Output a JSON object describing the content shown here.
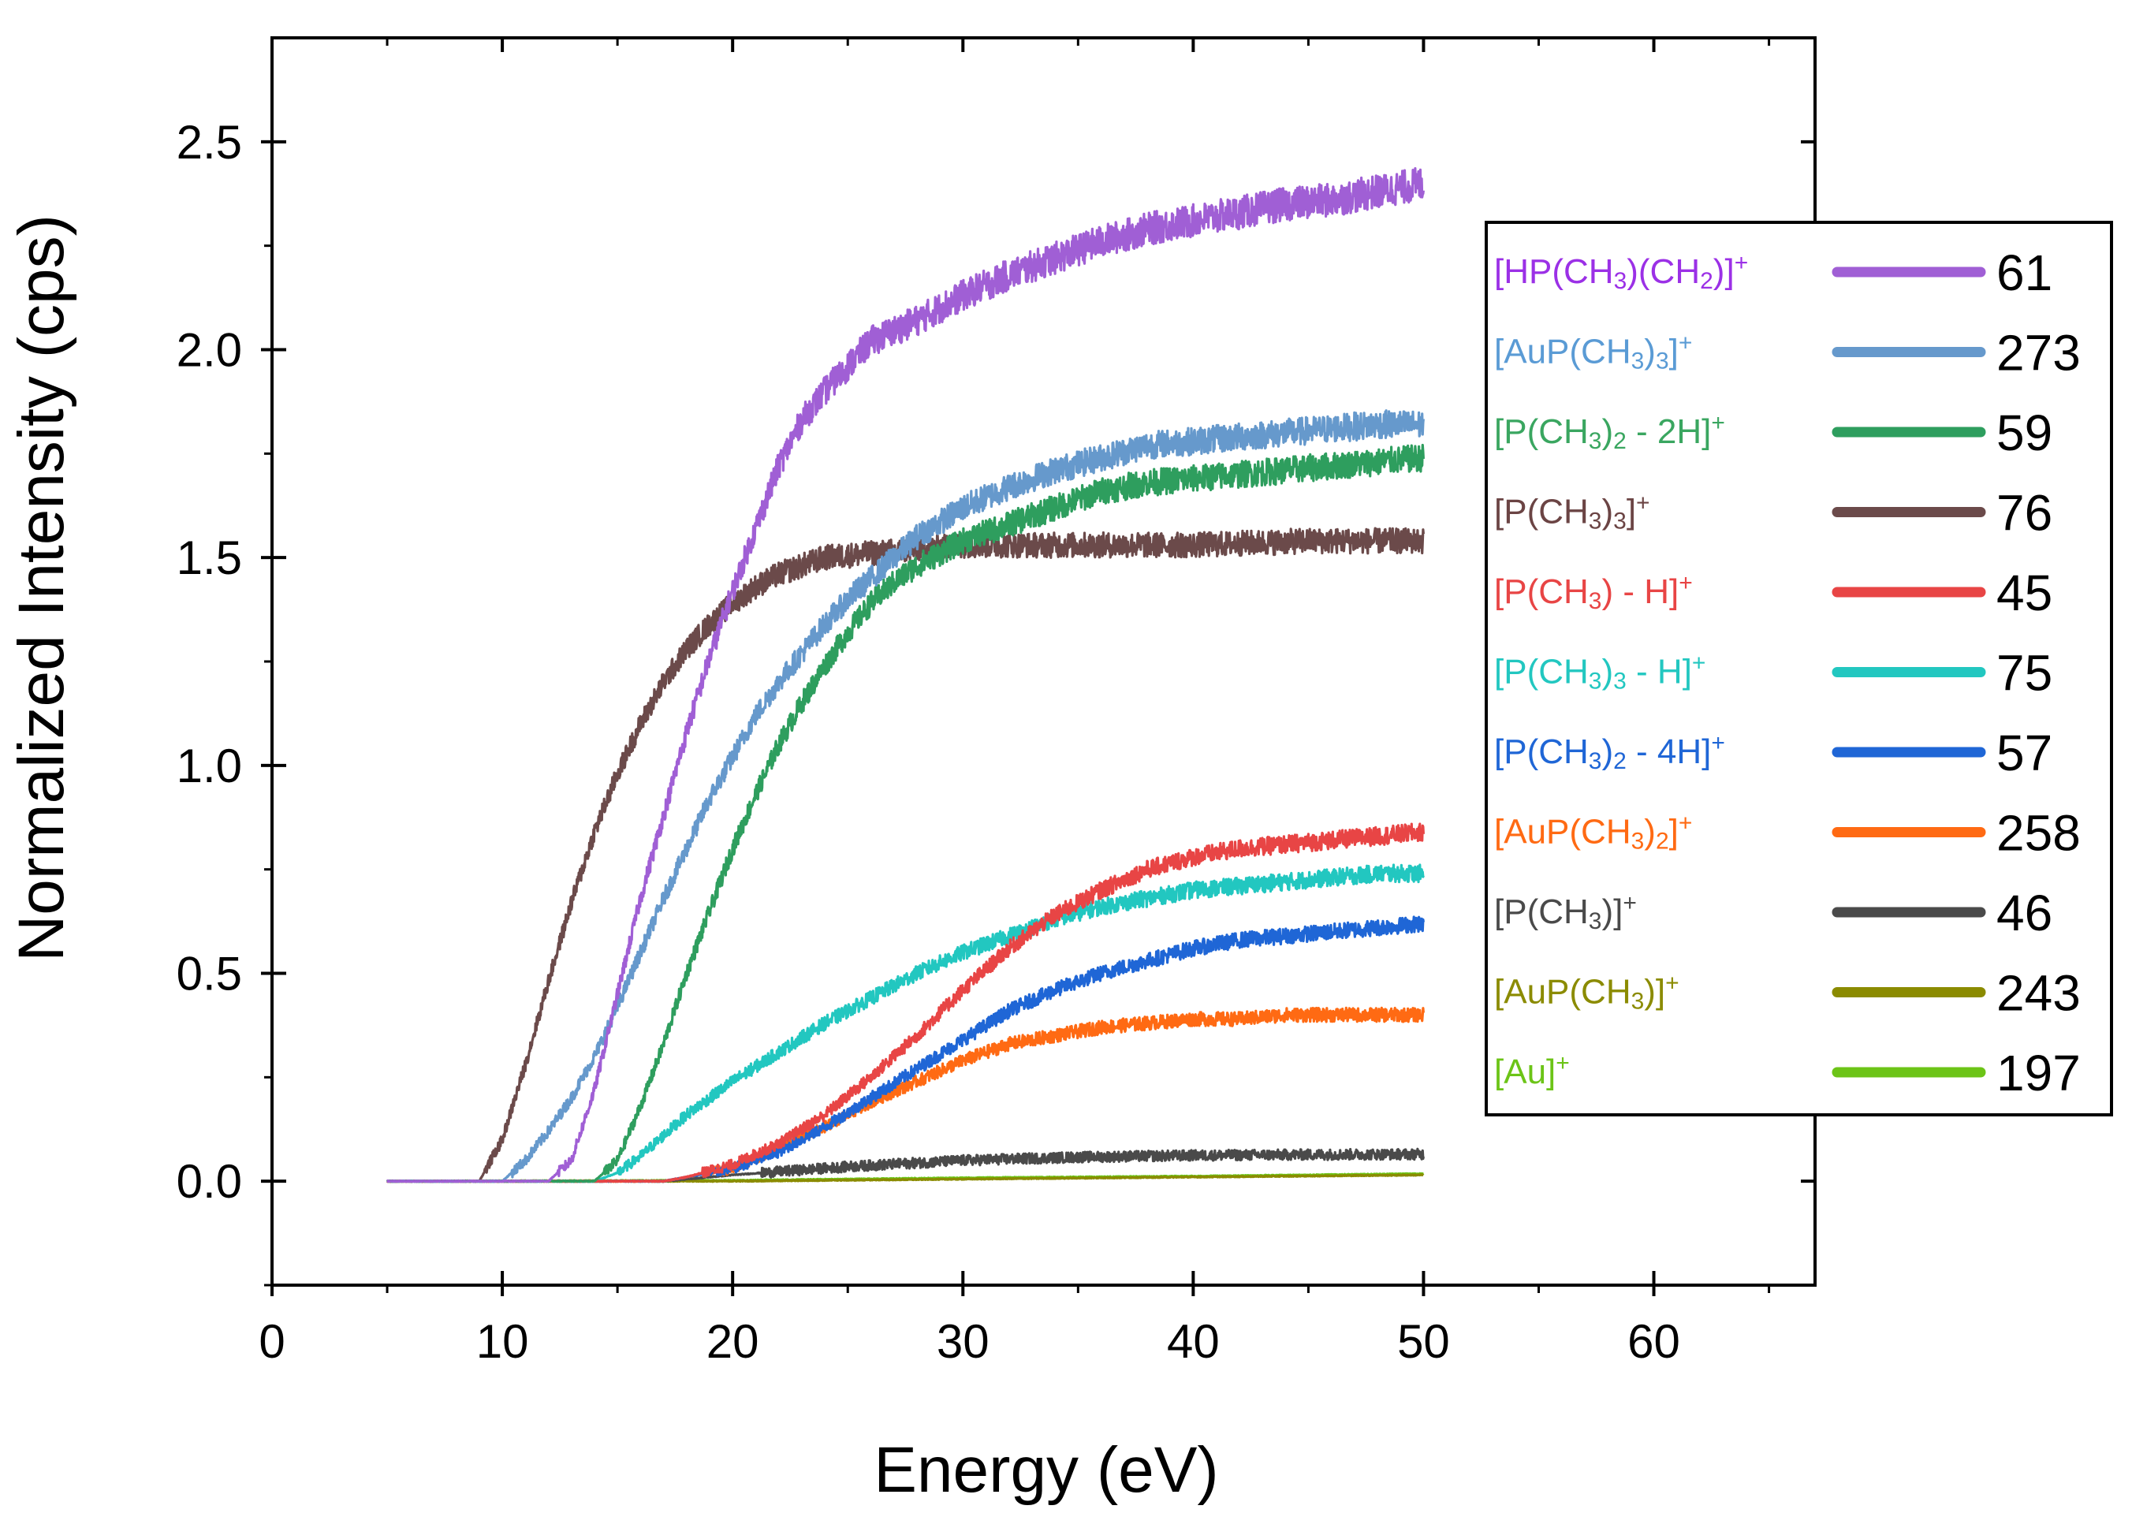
{
  "chart_data": {
    "type": "line",
    "title": "",
    "xlabel": "Energy (eV)",
    "ylabel": "Normalized Intensity (cps)",
    "xlim": [
      0,
      67
    ],
    "ylim": [
      -0.25,
      2.75
    ],
    "xticks": [
      "0",
      "10",
      "20",
      "30",
      "40",
      "50",
      "60"
    ],
    "xtick_values": [
      0,
      10,
      20,
      30,
      40,
      50,
      60
    ],
    "yticks": [
      "0.0",
      "0.5",
      "1.0",
      "1.5",
      "2.0",
      "2.5"
    ],
    "ytick_values": [
      0,
      0.5,
      1.0,
      1.5,
      2.0,
      2.5
    ],
    "legend_position": "right",
    "series": [
      {
        "name": "[HP(CH3)(CH2)]+",
        "label_parts": [
          [
            "[HP(CH",
            "n"
          ],
          [
            "3",
            "sub"
          ],
          [
            ")(CH",
            "n"
          ],
          [
            "2",
            "sub"
          ],
          [
            ")]",
            "n"
          ],
          [
            "+",
            "sup"
          ]
        ],
        "mass": "61",
        "color": "#a05fd5",
        "label_color": "#9b30e6",
        "points": [
          [
            5,
            0
          ],
          [
            12,
            0
          ],
          [
            13,
            0.05
          ],
          [
            14,
            0.22
          ],
          [
            15,
            0.45
          ],
          [
            16,
            0.68
          ],
          [
            17,
            0.88
          ],
          [
            18,
            1.08
          ],
          [
            19,
            1.26
          ],
          [
            20,
            1.42
          ],
          [
            21,
            1.57
          ],
          [
            22,
            1.72
          ],
          [
            23,
            1.83
          ],
          [
            24,
            1.9
          ],
          [
            25,
            1.96
          ],
          [
            26,
            2.02
          ],
          [
            28,
            2.07
          ],
          [
            30,
            2.13
          ],
          [
            32,
            2.18
          ],
          [
            34,
            2.22
          ],
          [
            36,
            2.26
          ],
          [
            38,
            2.29
          ],
          [
            40,
            2.31
          ],
          [
            42,
            2.33
          ],
          [
            44,
            2.35
          ],
          [
            46,
            2.36
          ],
          [
            48,
            2.38
          ],
          [
            50,
            2.4
          ]
        ]
      },
      {
        "name": "[AuP(CH3)3]+",
        "label_parts": [
          [
            "[AuP(CH",
            "n"
          ],
          [
            "3",
            "sub"
          ],
          [
            ")",
            "n"
          ],
          [
            "3",
            "sub"
          ],
          [
            "]",
            "n"
          ],
          [
            "+",
            "sup"
          ]
        ],
        "mass": "273",
        "color": "#6699cc",
        "label_color": "#5a9bd5",
        "points": [
          [
            5,
            0
          ],
          [
            10,
            0
          ],
          [
            11,
            0.05
          ],
          [
            12,
            0.12
          ],
          [
            13,
            0.2
          ],
          [
            14,
            0.3
          ],
          [
            15,
            0.42
          ],
          [
            16,
            0.55
          ],
          [
            17,
            0.68
          ],
          [
            18,
            0.8
          ],
          [
            19,
            0.92
          ],
          [
            20,
            1.02
          ],
          [
            21,
            1.12
          ],
          [
            22,
            1.2
          ],
          [
            23,
            1.27
          ],
          [
            24,
            1.34
          ],
          [
            25,
            1.4
          ],
          [
            26,
            1.45
          ],
          [
            27,
            1.5
          ],
          [
            28,
            1.55
          ],
          [
            30,
            1.62
          ],
          [
            32,
            1.67
          ],
          [
            34,
            1.71
          ],
          [
            36,
            1.74
          ],
          [
            38,
            1.77
          ],
          [
            40,
            1.78
          ],
          [
            42,
            1.79
          ],
          [
            44,
            1.8
          ],
          [
            46,
            1.81
          ],
          [
            48,
            1.82
          ],
          [
            50,
            1.82
          ]
        ]
      },
      {
        "name": "[P(CH3)2 - 2H]+",
        "label_parts": [
          [
            "[P(CH",
            "n"
          ],
          [
            "3",
            "sub"
          ],
          [
            ")",
            "n"
          ],
          [
            "2",
            "sub"
          ],
          [
            " - 2H]",
            "n"
          ],
          [
            "+",
            "sup"
          ]
        ],
        "mass": "59",
        "color": "#2e9e5e",
        "label_color": "#3aa660",
        "points": [
          [
            5,
            0
          ],
          [
            14,
            0
          ],
          [
            15,
            0.05
          ],
          [
            16,
            0.18
          ],
          [
            17,
            0.33
          ],
          [
            18,
            0.5
          ],
          [
            19,
            0.65
          ],
          [
            20,
            0.8
          ],
          [
            21,
            0.93
          ],
          [
            22,
            1.05
          ],
          [
            23,
            1.15
          ],
          [
            24,
            1.24
          ],
          [
            25,
            1.32
          ],
          [
            26,
            1.39
          ],
          [
            27,
            1.44
          ],
          [
            28,
            1.48
          ],
          [
            30,
            1.54
          ],
          [
            32,
            1.58
          ],
          [
            34,
            1.62
          ],
          [
            36,
            1.66
          ],
          [
            38,
            1.68
          ],
          [
            40,
            1.69
          ],
          [
            42,
            1.7
          ],
          [
            44,
            1.71
          ],
          [
            46,
            1.72
          ],
          [
            48,
            1.73
          ],
          [
            50,
            1.74
          ]
        ]
      },
      {
        "name": "[P(CH3)3]+",
        "label_parts": [
          [
            "[P(CH",
            "n"
          ],
          [
            "3",
            "sub"
          ],
          [
            ")",
            "n"
          ],
          [
            "3",
            "sub"
          ],
          [
            "]",
            "n"
          ],
          [
            "+",
            "sup"
          ]
        ],
        "mass": "76",
        "color": "#6b4a4a",
        "label_color": "#6b4444",
        "points": [
          [
            5,
            0
          ],
          [
            9,
            0
          ],
          [
            10,
            0.1
          ],
          [
            11,
            0.28
          ],
          [
            12,
            0.48
          ],
          [
            13,
            0.67
          ],
          [
            14,
            0.84
          ],
          [
            15,
            0.98
          ],
          [
            16,
            1.1
          ],
          [
            17,
            1.2
          ],
          [
            18,
            1.28
          ],
          [
            19,
            1.34
          ],
          [
            20,
            1.39
          ],
          [
            21,
            1.43
          ],
          [
            22,
            1.46
          ],
          [
            23,
            1.48
          ],
          [
            24,
            1.5
          ],
          [
            26,
            1.51
          ],
          [
            28,
            1.52
          ],
          [
            30,
            1.53
          ],
          [
            35,
            1.53
          ],
          [
            40,
            1.53
          ],
          [
            45,
            1.54
          ],
          [
            50,
            1.54
          ]
        ]
      },
      {
        "name": "[P(CH3) - H]+",
        "label_parts": [
          [
            "[P(CH",
            "n"
          ],
          [
            "3",
            "sub"
          ],
          [
            ") - H]",
            "n"
          ],
          [
            "+",
            "sup"
          ]
        ],
        "mass": "45",
        "color": "#e84545",
        "label_color": "#e84545",
        "points": [
          [
            5,
            0
          ],
          [
            17,
            0
          ],
          [
            18,
            0.01
          ],
          [
            20,
            0.04
          ],
          [
            22,
            0.09
          ],
          [
            24,
            0.16
          ],
          [
            26,
            0.25
          ],
          [
            28,
            0.35
          ],
          [
            30,
            0.46
          ],
          [
            32,
            0.56
          ],
          [
            34,
            0.64
          ],
          [
            36,
            0.7
          ],
          [
            38,
            0.75
          ],
          [
            40,
            0.78
          ],
          [
            42,
            0.8
          ],
          [
            44,
            0.81
          ],
          [
            46,
            0.82
          ],
          [
            48,
            0.83
          ],
          [
            50,
            0.84
          ]
        ]
      },
      {
        "name": "[P(CH3)3 - H]+",
        "label_parts": [
          [
            "[P(CH",
            "n"
          ],
          [
            "3",
            "sub"
          ],
          [
            ")",
            "n"
          ],
          [
            "3",
            "sub"
          ],
          [
            " - H]",
            "n"
          ],
          [
            "+",
            "sup"
          ]
        ],
        "mass": "75",
        "color": "#22c7c0",
        "label_color": "#22c7c0",
        "points": [
          [
            5,
            0
          ],
          [
            14,
            0
          ],
          [
            15,
            0.02
          ],
          [
            16,
            0.06
          ],
          [
            17,
            0.11
          ],
          [
            18,
            0.16
          ],
          [
            19,
            0.2
          ],
          [
            20,
            0.24
          ],
          [
            22,
            0.31
          ],
          [
            24,
            0.38
          ],
          [
            26,
            0.44
          ],
          [
            28,
            0.5
          ],
          [
            30,
            0.55
          ],
          [
            32,
            0.59
          ],
          [
            34,
            0.63
          ],
          [
            36,
            0.66
          ],
          [
            38,
            0.68
          ],
          [
            40,
            0.7
          ],
          [
            42,
            0.71
          ],
          [
            44,
            0.72
          ],
          [
            46,
            0.73
          ],
          [
            48,
            0.74
          ],
          [
            50,
            0.74
          ]
        ]
      },
      {
        "name": "[P(CH3)2 - 4H]+",
        "label_parts": [
          [
            "[P(CH",
            "n"
          ],
          [
            "3",
            "sub"
          ],
          [
            ")",
            "n"
          ],
          [
            "2",
            "sub"
          ],
          [
            " -  4H]",
            "n"
          ],
          [
            "+",
            "sup"
          ]
        ],
        "mass": "57",
        "color": "#1f66d6",
        "label_color": "#1f66d6",
        "points": [
          [
            5,
            0
          ],
          [
            17,
            0
          ],
          [
            18,
            0.01
          ],
          [
            20,
            0.03
          ],
          [
            22,
            0.07
          ],
          [
            24,
            0.13
          ],
          [
            26,
            0.2
          ],
          [
            28,
            0.27
          ],
          [
            30,
            0.34
          ],
          [
            32,
            0.41
          ],
          [
            34,
            0.46
          ],
          [
            36,
            0.5
          ],
          [
            38,
            0.53
          ],
          [
            40,
            0.56
          ],
          [
            42,
            0.58
          ],
          [
            44,
            0.59
          ],
          [
            46,
            0.6
          ],
          [
            48,
            0.61
          ],
          [
            50,
            0.62
          ]
        ]
      },
      {
        "name": "[AuP(CH3)2]+",
        "label_parts": [
          [
            "[AuP(CH",
            "n"
          ],
          [
            "3",
            "sub"
          ],
          [
            ")",
            "n"
          ],
          [
            "2",
            "sub"
          ],
          [
            "]",
            "n"
          ],
          [
            "+",
            "sup"
          ]
        ],
        "mass": "258",
        "color": "#ff6a13",
        "label_color": "#ff6a13",
        "points": [
          [
            5,
            0
          ],
          [
            17,
            0
          ],
          [
            18,
            0.01
          ],
          [
            20,
            0.03
          ],
          [
            22,
            0.08
          ],
          [
            24,
            0.13
          ],
          [
            26,
            0.19
          ],
          [
            28,
            0.24
          ],
          [
            30,
            0.29
          ],
          [
            32,
            0.33
          ],
          [
            34,
            0.35
          ],
          [
            36,
            0.37
          ],
          [
            38,
            0.38
          ],
          [
            40,
            0.39
          ],
          [
            42,
            0.39
          ],
          [
            44,
            0.4
          ],
          [
            46,
            0.4
          ],
          [
            48,
            0.4
          ],
          [
            50,
            0.4
          ]
        ]
      },
      {
        "name": "[P(CH3)]+",
        "label_parts": [
          [
            "[P(CH",
            "n"
          ],
          [
            "3",
            "sub"
          ],
          [
            ")]",
            "n"
          ],
          [
            "+",
            "sup"
          ]
        ],
        "mass": "46",
        "color": "#4a4a4a",
        "label_color": "#4a4a4a",
        "points": [
          [
            5,
            0
          ],
          [
            17,
            0
          ],
          [
            20,
            0.015
          ],
          [
            25,
            0.035
          ],
          [
            30,
            0.05
          ],
          [
            35,
            0.058
          ],
          [
            40,
            0.062
          ],
          [
            45,
            0.064
          ],
          [
            50,
            0.065
          ]
        ]
      },
      {
        "name": "[AuP(CH3)]+",
        "label_parts": [
          [
            "[AuP(CH",
            "n"
          ],
          [
            "3",
            "sub"
          ],
          [
            ")]",
            "n"
          ],
          [
            "+",
            "sup"
          ]
        ],
        "mass": "243",
        "color": "#8b8b00",
        "label_color": "#8b8b00",
        "points": [
          [
            5,
            0
          ],
          [
            20,
            0
          ],
          [
            30,
            0.005
          ],
          [
            40,
            0.01
          ],
          [
            50,
            0.015
          ]
        ]
      },
      {
        "name": "[Au]+",
        "label_parts": [
          [
            "[Au]",
            "n"
          ],
          [
            "+",
            "sup"
          ]
        ],
        "mass": "197",
        "color": "#6cc417",
        "label_color": "#6cc417",
        "points": [
          [
            5,
            0
          ],
          [
            20,
            0.002
          ],
          [
            30,
            0.008
          ],
          [
            40,
            0.012
          ],
          [
            50,
            0.018
          ]
        ]
      }
    ]
  }
}
